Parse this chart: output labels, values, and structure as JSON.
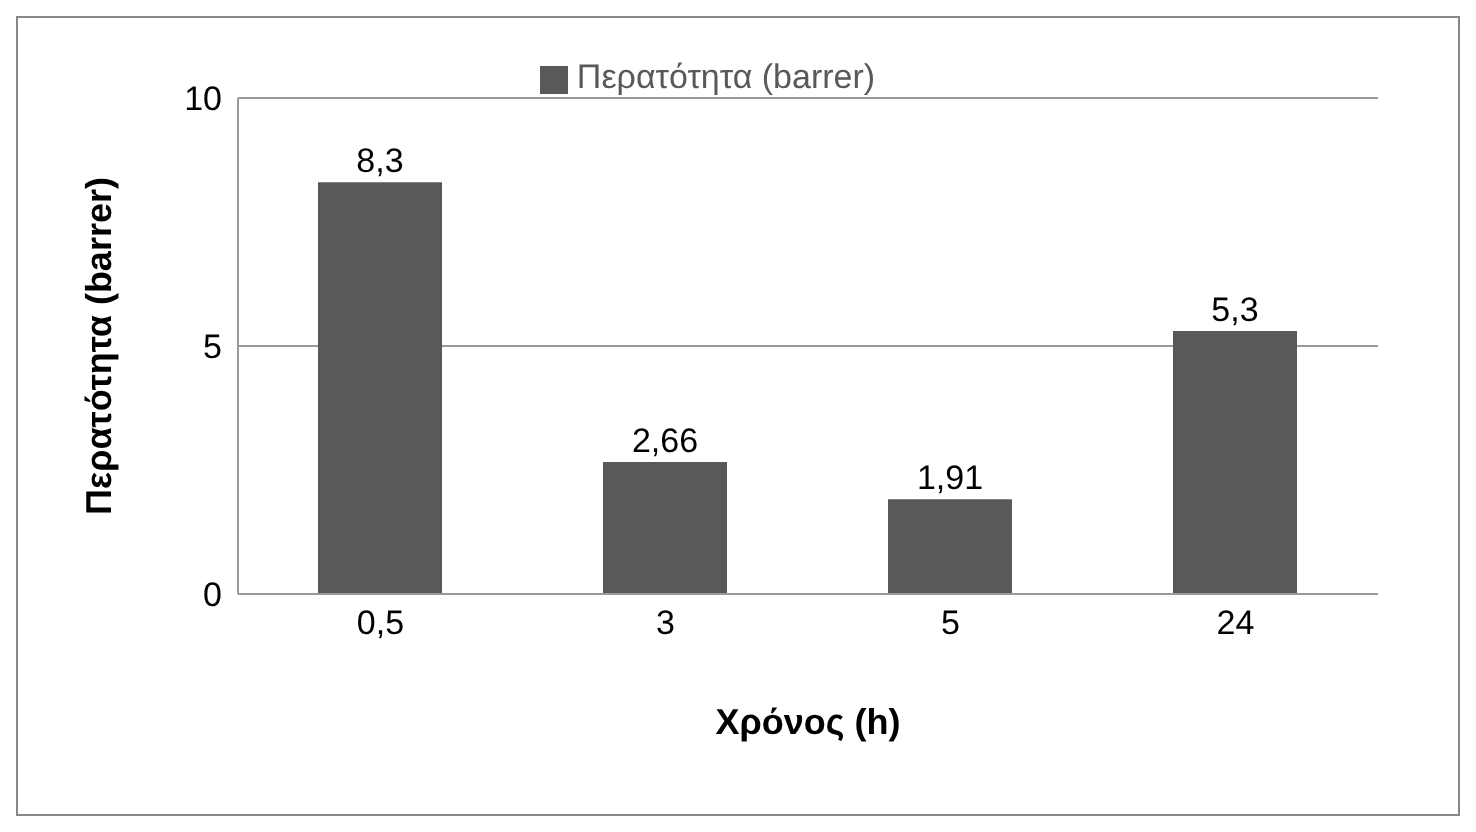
{
  "chart_data": {
    "type": "bar",
    "xlabel": "Χρόνος (h)",
    "ylabel": "Περατότητα (barrer)",
    "categories": [
      "0,5",
      "3",
      "5",
      "24"
    ],
    "series": [
      {
        "name": "Περατότητα (barrer)",
        "color": "#595959",
        "values": [
          8.3,
          2.66,
          1.91,
          5.3
        ],
        "value_labels": [
          "8,3",
          "2,66",
          "1,91",
          "5,3"
        ]
      }
    ],
    "ylim": [
      0,
      10
    ],
    "yticks": [
      0,
      5,
      10
    ],
    "grid": "y",
    "legend": "top"
  }
}
